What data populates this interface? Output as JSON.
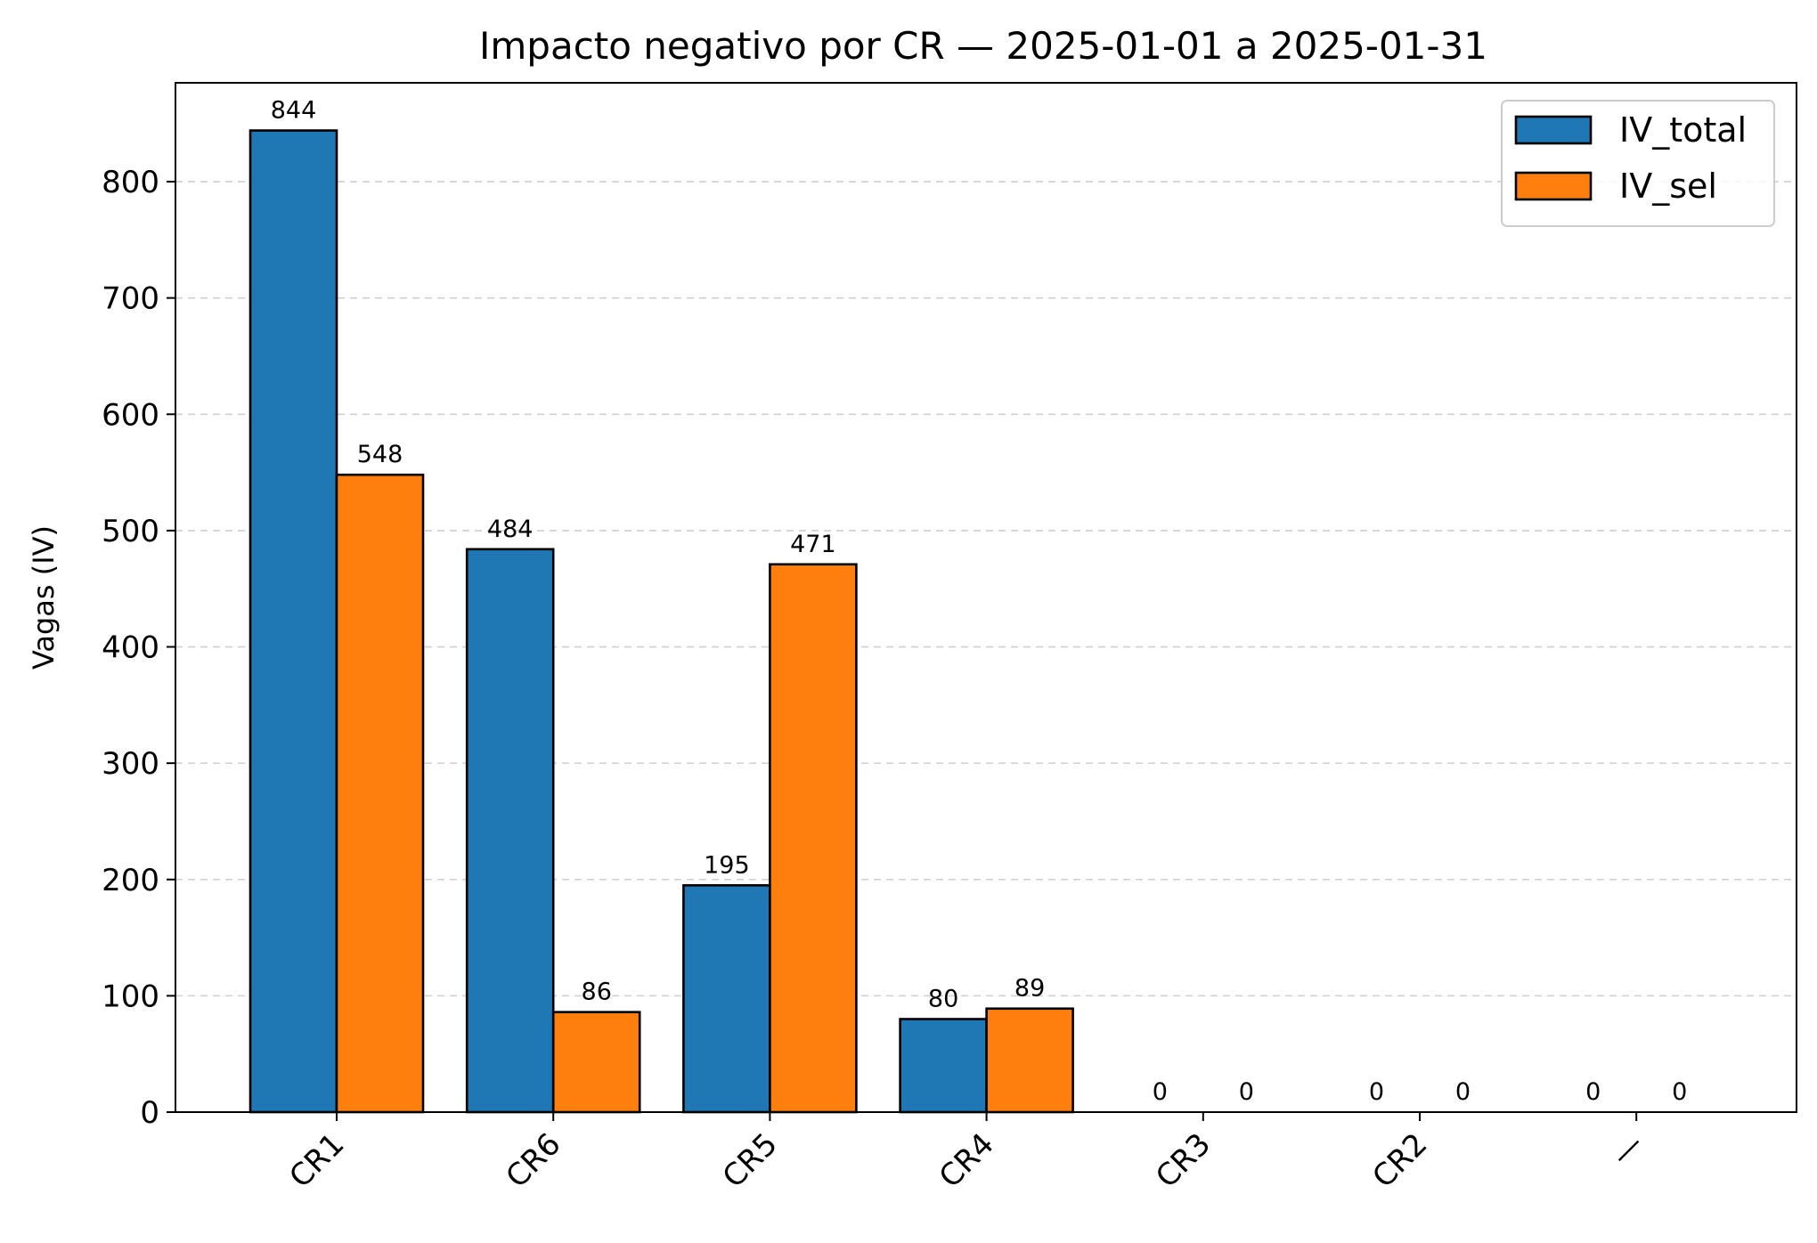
{
  "chart_data": {
    "type": "bar",
    "title": "Impacto negativo por CR — 2025-01-01 a 2025-01-31",
    "xlabel": "",
    "ylabel": "Vagas (IV)",
    "categories": [
      "CR1",
      "CR6",
      "CR5",
      "CR4",
      "CR3",
      "CR2",
      "—"
    ],
    "series": [
      {
        "name": "IV_total",
        "color": "#1f77b4",
        "values": [
          844,
          484,
          195,
          80,
          0,
          0,
          0
        ]
      },
      {
        "name": "IV_sel",
        "color": "#ff7f0e",
        "values": [
          548,
          86,
          471,
          89,
          0,
          0,
          0
        ]
      }
    ],
    "yticks": [
      0,
      100,
      200,
      300,
      400,
      500,
      600,
      700,
      800
    ],
    "ylim": [
      0,
      885
    ],
    "grid": "y-dashed",
    "legend_position": "top-right",
    "x_tick_rotation": 45
  }
}
